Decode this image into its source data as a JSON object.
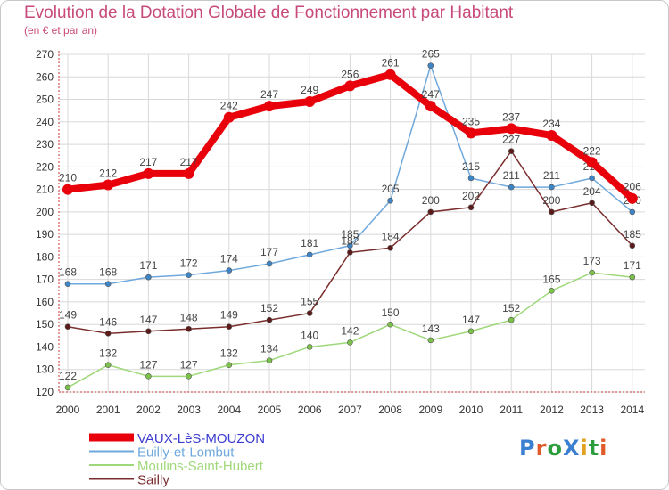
{
  "title": "Evolution de la Dotation Globale de Fonctionnement par Habitant",
  "subtitle": "(en € et par an)",
  "logo": {
    "text": "ProXiti",
    "colors": [
      "#3b7fd1",
      "#e05a2a",
      "#2c9d3c",
      "#3b7fd1",
      "#e0a020",
      "#2c9d3c",
      "#e05a2a"
    ]
  },
  "colors": {
    "title": "#c84a7a",
    "background": "#ffffff",
    "grid": "#d8d8d8"
  },
  "chart_data": {
    "type": "line",
    "x": [
      2000,
      2001,
      2002,
      2003,
      2004,
      2005,
      2006,
      2007,
      2008,
      2009,
      2010,
      2011,
      2012,
      2013,
      2014
    ],
    "ylim": [
      120,
      270
    ],
    "yticks": [
      120,
      130,
      140,
      150,
      160,
      170,
      180,
      190,
      200,
      210,
      220,
      230,
      240,
      250,
      260,
      270
    ],
    "grid": true,
    "legend_position": "bottom-left",
    "series": [
      {
        "name": "VAUX-LèS-MOUZON",
        "color": "#e8000b",
        "marker_color": "#e8000b",
        "legend_text_color": "#3b3bd0",
        "width": 8,
        "values": [
          210,
          212,
          217,
          217,
          242,
          247,
          249,
          256,
          261,
          247,
          235,
          237,
          234,
          222,
          206
        ]
      },
      {
        "name": "Euilly-et-Lombut",
        "color": "#6fa8dc",
        "marker_color": "#3d85c6",
        "legend_text_color": "#6fa8dc",
        "width": 1.5,
        "values": [
          168,
          168,
          171,
          172,
          174,
          177,
          181,
          185,
          205,
          265,
          215,
          211,
          211,
          215,
          200
        ]
      },
      {
        "name": "Moulins-Saint-Hubert",
        "color": "#9fd87a",
        "marker_color": "#7cc24a",
        "legend_text_color": "#9fd87a",
        "width": 1.5,
        "values": [
          122,
          132,
          127,
          127,
          132,
          134,
          140,
          142,
          150,
          143,
          147,
          152,
          165,
          173,
          171
        ]
      },
      {
        "name": "Sailly",
        "color": "#7a2d2d",
        "marker_color": "#5c1a1a",
        "legend_text_color": "#7a2d2d",
        "width": 1.5,
        "values": [
          149,
          146,
          147,
          148,
          149,
          152,
          155,
          182,
          184,
          200,
          202,
          227,
          200,
          204,
          185
        ]
      }
    ]
  }
}
